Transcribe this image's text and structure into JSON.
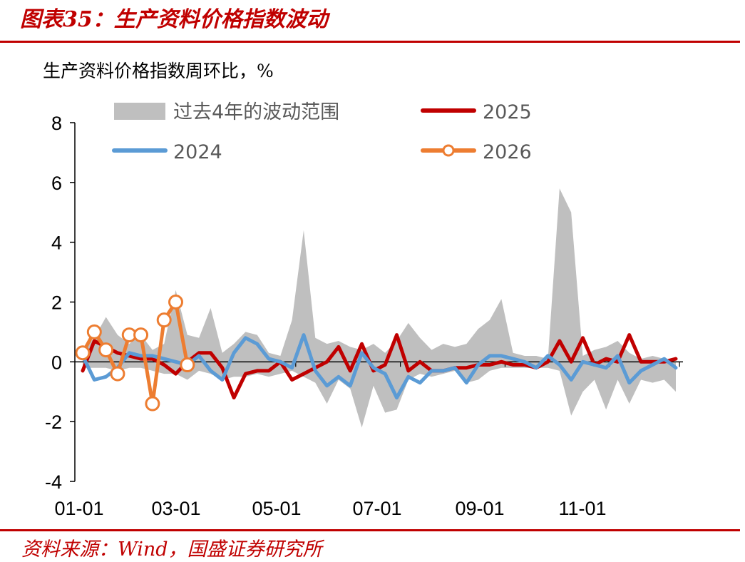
{
  "title": "图表35：生产资料价格指数波动",
  "unit_label": "生产资料价格指数周环比，%",
  "source": "资料来源：Wind，国盛证券研究所",
  "colors": {
    "accent": "#c00000",
    "band": "#bfbfbf",
    "s2025": "#c00000",
    "s2024": "#5b9bd5",
    "s2026": "#ed7d31"
  },
  "chart_data": {
    "type": "line",
    "ylim": [
      -4,
      8
    ],
    "yticks": [
      "8",
      "6",
      "4",
      "2",
      "0",
      "-2",
      "-4"
    ],
    "xticks": [
      "01-01",
      "03-01",
      "05-01",
      "07-01",
      "09-01",
      "11-01"
    ],
    "legend_placement": "top",
    "band": {
      "name": "过去4年的波动范围",
      "week": [
        1,
        2,
        3,
        4,
        5,
        6,
        7,
        8,
        9,
        10,
        11,
        12,
        13,
        14,
        15,
        16,
        17,
        18,
        19,
        20,
        21,
        22,
        23,
        24,
        25,
        26,
        27,
        28,
        29,
        30,
        31,
        32,
        33,
        34,
        35,
        36,
        37,
        38,
        39,
        40,
        41,
        42,
        43,
        44,
        45,
        46,
        47,
        48,
        49,
        50,
        51,
        52
      ],
      "upper": [
        0.4,
        0.8,
        1.5,
        0.9,
        0.6,
        0.9,
        0.4,
        0.6,
        2.4,
        0.9,
        0.8,
        1.8,
        0.3,
        0.6,
        1.0,
        0.9,
        0.3,
        0.2,
        1.4,
        4.4,
        0.8,
        0.6,
        0.7,
        0.5,
        0.4,
        0.6,
        0.3,
        0.7,
        1.3,
        0.8,
        0.4,
        0.6,
        0.5,
        0.6,
        1.1,
        1.4,
        2.1,
        0.3,
        0.2,
        0.2,
        0.1,
        5.8,
        5.0,
        0.2,
        0.4,
        0.5,
        0.7,
        0.3,
        0.1,
        0.2,
        0.1,
        0.0
      ],
      "lower": [
        -0.2,
        -0.2,
        -0.2,
        -0.3,
        -0.2,
        -0.2,
        -0.3,
        -0.4,
        -0.4,
        -0.6,
        -0.3,
        -0.4,
        -0.6,
        -0.5,
        -0.5,
        -0.4,
        -0.5,
        -0.4,
        -0.3,
        -0.5,
        -0.7,
        -1.4,
        -0.6,
        -0.9,
        -2.2,
        -0.8,
        -1.7,
        -1.6,
        -0.6,
        -0.4,
        -0.5,
        -0.4,
        -0.3,
        -0.7,
        -0.6,
        -0.3,
        -0.2,
        -0.2,
        -0.2,
        -0.2,
        -0.2,
        -0.3,
        -1.8,
        -1.0,
        -0.6,
        -1.6,
        -0.6,
        -1.4,
        -0.6,
        -0.7,
        -0.6,
        -1.0
      ]
    },
    "series": [
      {
        "name": "2025",
        "week": [
          1,
          2,
          3,
          4,
          5,
          6,
          7,
          8,
          9,
          10,
          11,
          12,
          13,
          14,
          15,
          16,
          17,
          18,
          19,
          20,
          21,
          22,
          23,
          24,
          25,
          26,
          27,
          28,
          29,
          30,
          31,
          32,
          33,
          34,
          35,
          36,
          37,
          38,
          39,
          40,
          41,
          42,
          43,
          44,
          45,
          46,
          47,
          48,
          49,
          50,
          51,
          52
        ],
        "values": [
          -0.3,
          0.7,
          0.5,
          0.3,
          0.2,
          0.1,
          0.1,
          -0.1,
          -0.4,
          0.0,
          0.3,
          0.3,
          -0.2,
          -1.2,
          -0.4,
          -0.3,
          -0.3,
          0.0,
          -0.6,
          -0.4,
          -0.2,
          0.0,
          0.5,
          -0.3,
          0.6,
          -0.3,
          -0.1,
          0.9,
          -0.3,
          0.0,
          -0.3,
          -0.3,
          -0.2,
          -0.2,
          -0.1,
          -0.1,
          0.0,
          -0.1,
          -0.1,
          -0.2,
          0.0,
          0.7,
          0.0,
          0.8,
          -0.1,
          0.1,
          0.0,
          0.9,
          0.0,
          0.0,
          0.0,
          0.1
        ]
      },
      {
        "name": "2024",
        "week": [
          1,
          2,
          3,
          4,
          5,
          6,
          7,
          8,
          9,
          10,
          11,
          12,
          13,
          14,
          15,
          16,
          17,
          18,
          19,
          20,
          21,
          22,
          23,
          24,
          25,
          26,
          27,
          28,
          29,
          30,
          31,
          32,
          33,
          34,
          35,
          36,
          37,
          38,
          39,
          40,
          41,
          42,
          43,
          44,
          45,
          46,
          47,
          48,
          49,
          50,
          51,
          52
        ],
        "values": [
          0.2,
          -0.6,
          -0.5,
          -0.2,
          0.3,
          0.2,
          0.2,
          0.1,
          0.0,
          -0.1,
          0.2,
          -0.3,
          -0.6,
          0.3,
          0.8,
          0.6,
          0.1,
          0.0,
          -0.2,
          0.9,
          -0.3,
          -0.8,
          -0.5,
          -0.8,
          0.3,
          -0.2,
          -0.4,
          -1.2,
          -0.5,
          -0.7,
          -0.3,
          -0.3,
          -0.2,
          -0.7,
          -0.1,
          0.2,
          0.2,
          0.1,
          0.0,
          -0.2,
          0.2,
          -0.1,
          -0.6,
          0.0,
          -0.1,
          -0.2,
          0.2,
          -0.7,
          -0.3,
          -0.1,
          0.1,
          -0.2
        ]
      },
      {
        "name": "2026",
        "week": [
          1,
          2,
          3,
          4,
          5,
          6,
          7,
          8,
          9,
          10,
          11,
          12
        ],
        "values": [
          0.3,
          1.0,
          0.4,
          -0.4,
          0.9,
          0.9,
          -1.4,
          1.4,
          2.0,
          -0.1,
          null,
          null
        ]
      }
    ]
  }
}
